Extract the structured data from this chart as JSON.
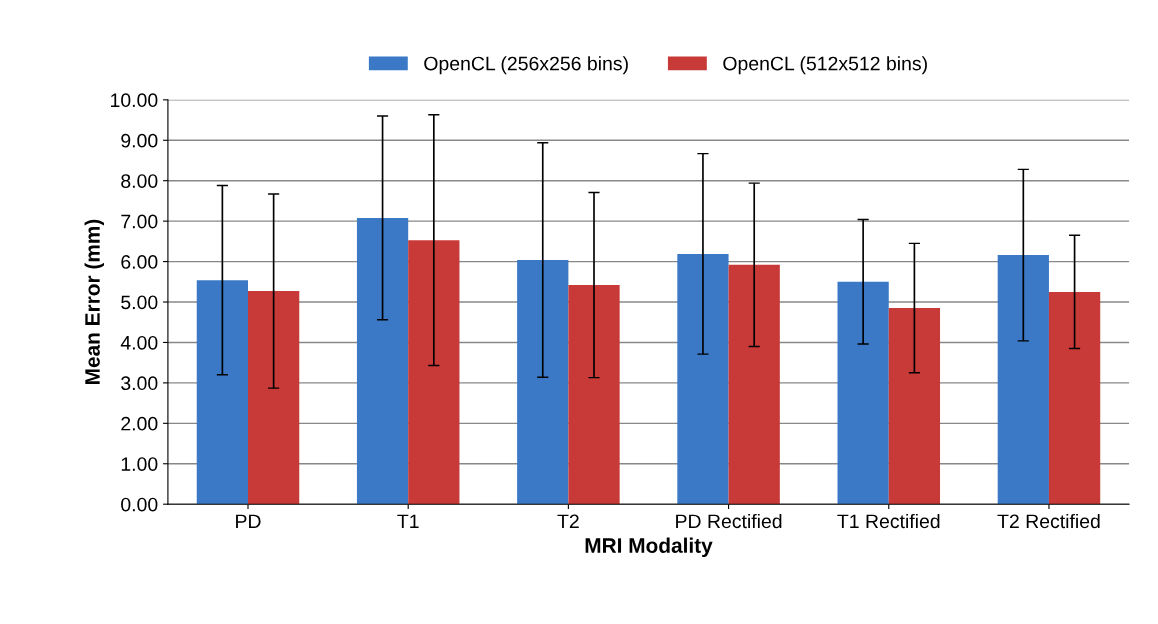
{
  "chart_data": {
    "type": "bar",
    "xlabel": "MRI Modality",
    "ylabel": "Mean Error (mm)",
    "categories": [
      "PD",
      "T1",
      "T2",
      "PD Rectified",
      "T1 Rectified",
      "T2 Rectified"
    ],
    "series": [
      {
        "name": "OpenCL (256x256 bins)",
        "color": "#3b78c6",
        "values": [
          5.54,
          7.08,
          6.04,
          6.19,
          5.5,
          6.16
        ],
        "errors": [
          2.34,
          2.52,
          2.9,
          2.48,
          1.54,
          2.12
        ]
      },
      {
        "name": "OpenCL (512x512 bins)",
        "color": "#c83a37",
        "values": [
          5.27,
          6.53,
          5.42,
          5.92,
          4.85,
          5.25
        ],
        "errors": [
          2.4,
          3.1,
          2.29,
          2.02,
          1.6,
          1.4
        ]
      }
    ],
    "ylim": [
      0,
      10
    ],
    "yticks": [
      {
        "value": 0,
        "label": "0.00"
      },
      {
        "value": 1,
        "label": "1.00"
      },
      {
        "value": 2,
        "label": "2.00"
      },
      {
        "value": 3,
        "label": "3.00"
      },
      {
        "value": 4,
        "label": "4.00"
      },
      {
        "value": 5,
        "label": "5.00"
      },
      {
        "value": 6,
        "label": "6.00"
      },
      {
        "value": 7,
        "label": "7.00"
      },
      {
        "value": 8,
        "label": "8.00"
      },
      {
        "value": 9,
        "label": "9.00"
      },
      {
        "value": 10,
        "label": "10.00"
      }
    ],
    "grid": "y",
    "legend": "top"
  }
}
